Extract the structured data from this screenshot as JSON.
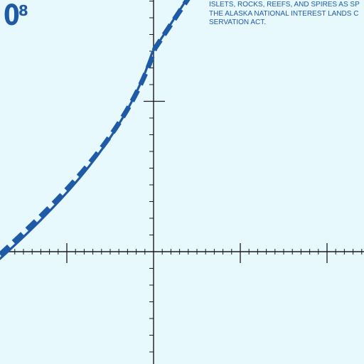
{
  "page_number": {
    "main": "0",
    "superscript": "8"
  },
  "caption": {
    "lines": [
      "ISLETS, ROCKS, REEFS, AND SPIRES AS SP",
      "THE ALASKA NATIONAL INTEREST LANDS C",
      "SERVATION ACT."
    ]
  },
  "colors": {
    "background": "#e8f9fd",
    "curve": "#1f5aa6",
    "text": "#1f5aa6",
    "axis": "#1a1a1a"
  }
}
